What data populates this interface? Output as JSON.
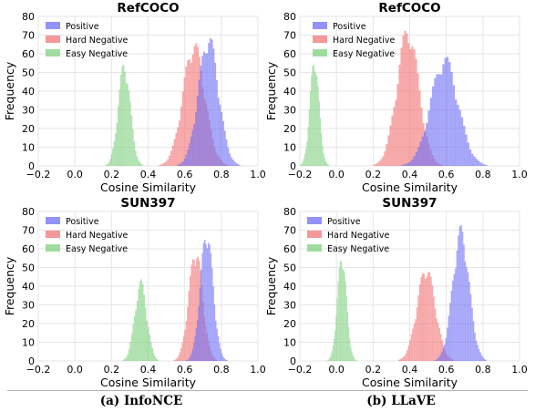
{
  "colors": {
    "positive": "#6e6ef5",
    "hard_negative": "#f27575",
    "easy_negative": "#7fd07f"
  },
  "captions": {
    "left": "(a) InfoNCE",
    "right": "(b) LLaVE"
  },
  "chart_data": [
    {
      "type": "bar",
      "title": "RefCOCO",
      "xlabel": "Cosine Similarity",
      "ylabel": "Frequency",
      "xlim": [
        -0.2,
        1.0
      ],
      "ylim": [
        0,
        80
      ],
      "xticks": [
        "−0.2",
        "0.0",
        "0.2",
        "0.4",
        "0.6",
        "0.8",
        "1.0"
      ],
      "yticks": [
        "0",
        "10",
        "20",
        "30",
        "40",
        "50",
        "60",
        "70",
        "80"
      ],
      "grid": true,
      "legend_position": "top-left",
      "series": [
        {
          "name": "Positive",
          "color_key": "positive",
          "mean": 0.73,
          "std": 0.055,
          "peak": 72,
          "n_bins": 42,
          "range": [
            0.56,
            0.93
          ]
        },
        {
          "name": "Hard Negative",
          "color_key": "hard_negative",
          "mean": 0.65,
          "std": 0.06,
          "peak": 68,
          "n_bins": 44,
          "range": [
            0.44,
            0.84
          ]
        },
        {
          "name": "Easy Negative",
          "color_key": "easy_negative",
          "mean": 0.27,
          "std": 0.033,
          "peak": 57,
          "n_bins": 30,
          "range": [
            0.16,
            0.38
          ]
        }
      ]
    },
    {
      "type": "bar",
      "title": "RefCOCO",
      "xlabel": "Cosine Similarity",
      "ylabel": "Frequency",
      "xlim": [
        -0.2,
        1.0
      ],
      "ylim": [
        0,
        80
      ],
      "xticks": [
        "−0.2",
        "0.0",
        "0.2",
        "0.4",
        "0.6",
        "0.8",
        "1.0"
      ],
      "yticks": [
        "0",
        "10",
        "20",
        "30",
        "40",
        "50",
        "60",
        "70",
        "80"
      ],
      "grid": true,
      "legend_position": "top-right",
      "series": [
        {
          "name": "Positive",
          "color_key": "positive",
          "mean": 0.59,
          "std": 0.075,
          "peak": 60,
          "n_bins": 46,
          "range": [
            0.33,
            0.85
          ]
        },
        {
          "name": "Hard Negative",
          "color_key": "hard_negative",
          "mean": 0.39,
          "std": 0.06,
          "peak": 76,
          "n_bins": 44,
          "range": [
            0.18,
            0.62
          ]
        },
        {
          "name": "Easy Negative",
          "color_key": "easy_negative",
          "mean": -0.12,
          "std": 0.025,
          "peak": 60,
          "n_bins": 28,
          "range": [
            -0.2,
            -0.03
          ]
        }
      ]
    },
    {
      "type": "bar",
      "title": "SUN397",
      "xlabel": "Cosine Similarity",
      "ylabel": "Frequency",
      "xlim": [
        -0.2,
        1.0
      ],
      "ylim": [
        0,
        80
      ],
      "xticks": [
        "−0.2",
        "0.0",
        "0.2",
        "0.4",
        "0.6",
        "0.8",
        "1.0"
      ],
      "yticks": [
        "0",
        "10",
        "20",
        "30",
        "40",
        "50",
        "60",
        "70",
        "80"
      ],
      "grid": true,
      "legend_position": "top-left",
      "series": [
        {
          "name": "Positive",
          "color_key": "positive",
          "mean": 0.72,
          "std": 0.035,
          "peak": 72,
          "n_bins": 36,
          "range": [
            0.6,
            0.84
          ]
        },
        {
          "name": "Hard Negative",
          "color_key": "hard_negative",
          "mean": 0.66,
          "std": 0.038,
          "peak": 62,
          "n_bins": 38,
          "range": [
            0.52,
            0.79
          ]
        },
        {
          "name": "Easy Negative",
          "color_key": "easy_negative",
          "mean": 0.36,
          "std": 0.033,
          "peak": 44,
          "n_bins": 32,
          "range": [
            0.24,
            0.48
          ]
        }
      ]
    },
    {
      "type": "bar",
      "title": "SUN397",
      "xlabel": "Cosine Similarity",
      "ylabel": "Frequency",
      "xlim": [
        -0.2,
        1.0
      ],
      "ylim": [
        0,
        80
      ],
      "xticks": [
        "−0.2",
        "0.0",
        "0.2",
        "0.4",
        "0.6",
        "0.8",
        "1.0"
      ],
      "yticks": [
        "0",
        "10",
        "20",
        "30",
        "40",
        "50",
        "60",
        "70",
        "80"
      ],
      "grid": true,
      "legend_position": "top-left",
      "series": [
        {
          "name": "Positive",
          "color_key": "positive",
          "mean": 0.68,
          "std": 0.045,
          "peak": 73,
          "n_bins": 40,
          "range": [
            0.52,
            0.82
          ]
        },
        {
          "name": "Hard Negative",
          "color_key": "hard_negative",
          "mean": 0.49,
          "std": 0.05,
          "peak": 52,
          "n_bins": 42,
          "range": [
            0.33,
            0.65
          ]
        },
        {
          "name": "Easy Negative",
          "color_key": "easy_negative",
          "mean": 0.03,
          "std": 0.025,
          "peak": 59,
          "n_bins": 28,
          "range": [
            -0.05,
            0.11
          ]
        }
      ]
    }
  ]
}
